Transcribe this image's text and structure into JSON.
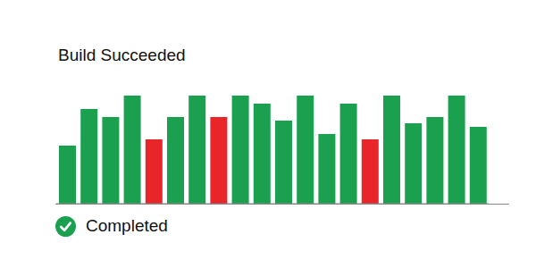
{
  "chart_data": {
    "type": "bar",
    "title": "Build Succeeded",
    "annotation": "Completed",
    "categories": [
      null,
      null,
      null,
      null,
      null,
      null,
      null,
      null,
      null,
      null,
      null,
      null,
      null,
      null,
      null,
      null,
      null,
      null,
      null,
      null
    ],
    "values": [
      65,
      106,
      97,
      121,
      72,
      97,
      121,
      97,
      121,
      112,
      93,
      121,
      78,
      112,
      72,
      121,
      90,
      97,
      121,
      86
    ],
    "colors": [
      "#1ba04f",
      "#1ba04f",
      "#1ba04f",
      "#1ba04f",
      "#e8262a",
      "#1ba04f",
      "#1ba04f",
      "#e8262a",
      "#1ba04f",
      "#1ba04f",
      "#1ba04f",
      "#1ba04f",
      "#1ba04f",
      "#1ba04f",
      "#e8262a",
      "#1ba04f",
      "#1ba04f",
      "#1ba04f",
      "#1ba04f",
      "#1ba04f"
    ],
    "ylim": [
      0,
      121
    ],
    "tick_labels": false
  }
}
